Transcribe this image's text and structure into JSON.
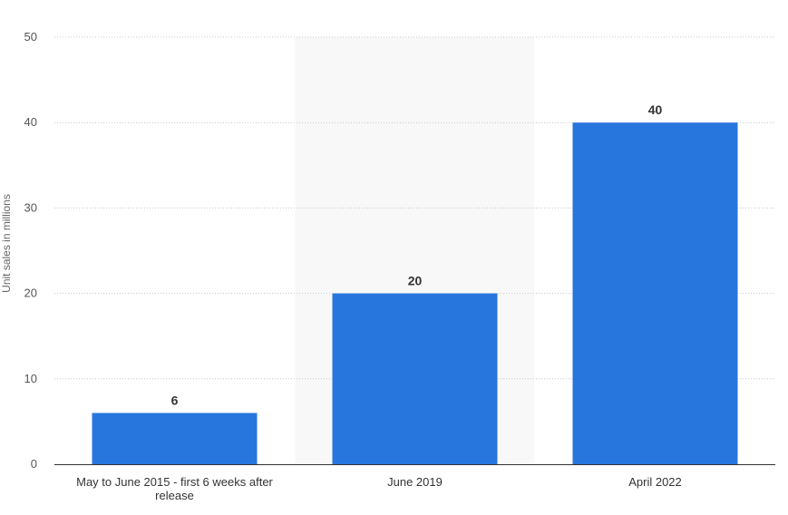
{
  "chart_data": {
    "type": "bar",
    "categories": [
      "May to June 2015 - first 6 weeks after release",
      "June 2019",
      "April 2022"
    ],
    "values": [
      6,
      20,
      40
    ],
    "xlabel": "",
    "ylabel": "Unit sales in millions",
    "ylim": [
      0,
      50
    ],
    "yticks": [
      0,
      10,
      20,
      30,
      40,
      50
    ],
    "grid": true,
    "legend": "none",
    "bar_color": "#2776dd",
    "highlight_color": "#f8f8f8",
    "highlighted_category_index": 1
  }
}
